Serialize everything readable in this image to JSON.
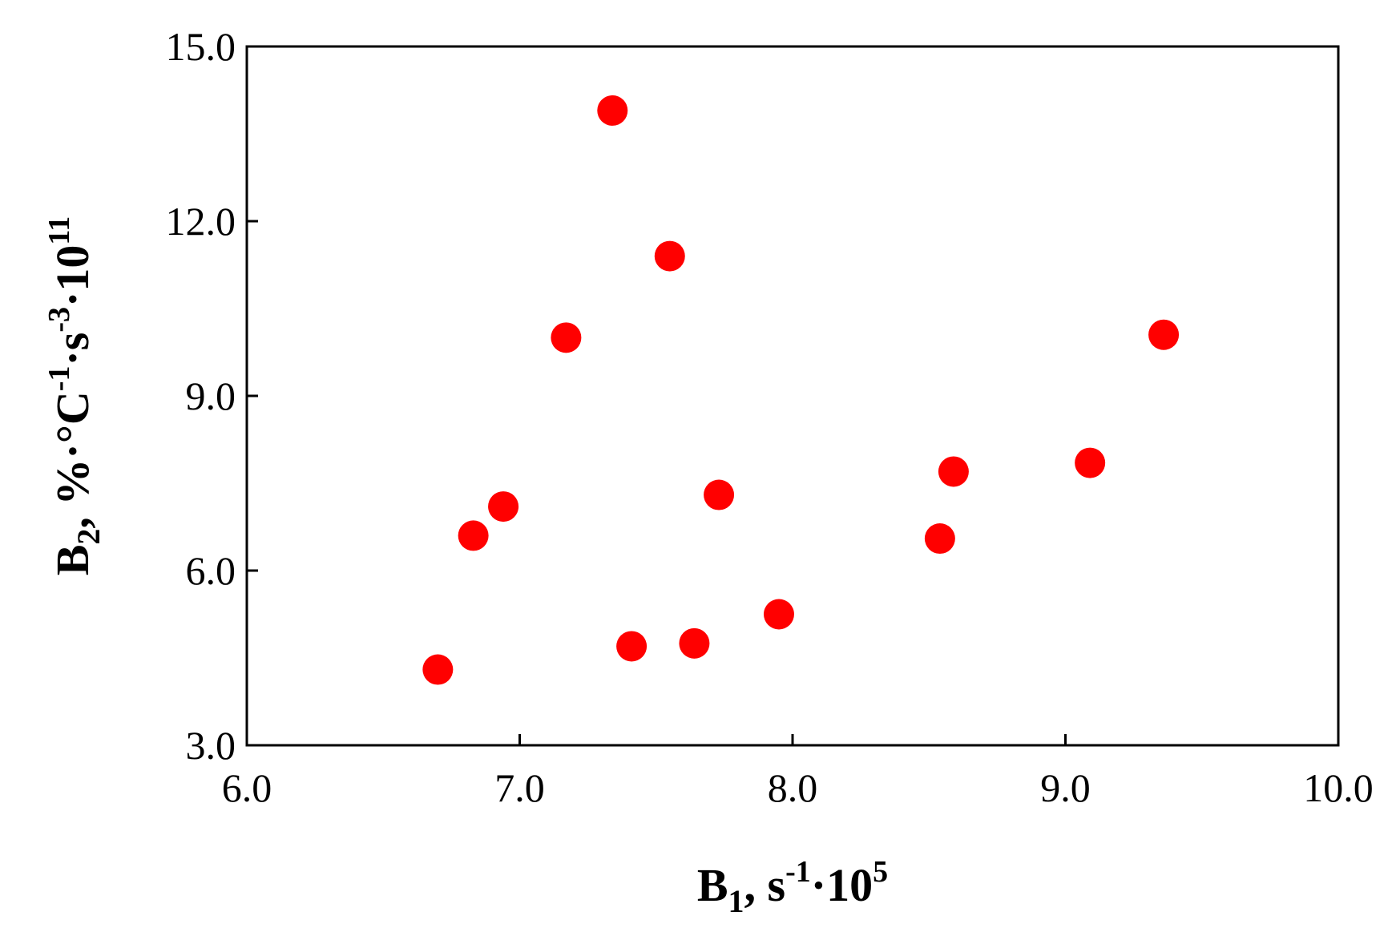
{
  "chart_data": {
    "type": "scatter",
    "xlim": [
      6.0,
      10.0
    ],
    "ylim": [
      3.0,
      15.0
    ],
    "x_ticks": [
      "6.0",
      "7.0",
      "8.0",
      "9.0",
      "10.0"
    ],
    "y_ticks": [
      "3.0",
      "6.0",
      "9.0",
      "12.0",
      "15.0"
    ],
    "xlabel": {
      "main": "B",
      "sub": "1",
      "rest": ", s",
      "sup1": "-1",
      "mid": "·10",
      "sup2": "5"
    },
    "ylabel": {
      "main": "B",
      "sub": "2",
      "rest": ", %·°C",
      "sup1": "-1",
      "mid1": "·s",
      "sup2": "-3",
      "mid2": "·10",
      "sup3": "11"
    },
    "grid": false,
    "marker_color": "#ff0000",
    "points": [
      {
        "x": 6.7,
        "y": 4.3
      },
      {
        "x": 6.83,
        "y": 6.6
      },
      {
        "x": 6.94,
        "y": 7.1
      },
      {
        "x": 7.17,
        "y": 10.0
      },
      {
        "x": 7.34,
        "y": 13.9
      },
      {
        "x": 7.41,
        "y": 4.7
      },
      {
        "x": 7.55,
        "y": 11.4
      },
      {
        "x": 7.64,
        "y": 4.75
      },
      {
        "x": 7.73,
        "y": 7.3
      },
      {
        "x": 7.95,
        "y": 5.25
      },
      {
        "x": 8.54,
        "y": 6.55
      },
      {
        "x": 8.59,
        "y": 7.7
      },
      {
        "x": 9.09,
        "y": 7.85
      },
      {
        "x": 9.36,
        "y": 10.05
      }
    ]
  }
}
